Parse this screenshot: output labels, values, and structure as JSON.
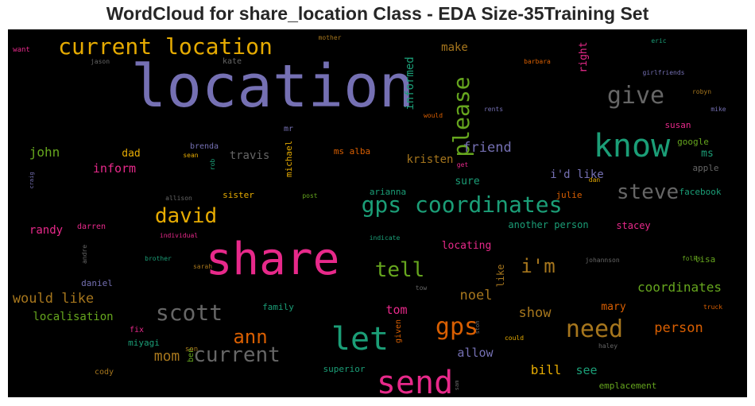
{
  "chart_data": {
    "type": "wordcloud",
    "title": "WordCloud for share_location Class - EDA Size-35Training Set",
    "background_color": "#000000",
    "colormap": "Dark2",
    "words": [
      {
        "text": "location",
        "weight": 100,
        "color": "#7570b3"
      },
      {
        "text": "share",
        "weight": 75,
        "color": "#e7298a"
      },
      {
        "text": "know",
        "weight": 48,
        "color": "#1b9e77"
      },
      {
        "text": "send",
        "weight": 46,
        "color": "#e7298a"
      },
      {
        "text": "let",
        "weight": 44,
        "color": "#1b9e77"
      },
      {
        "text": "need",
        "weight": 38,
        "color": "#a6761d"
      },
      {
        "text": "gps",
        "weight": 36,
        "color": "#d95f02"
      },
      {
        "text": "current location",
        "weight": 35,
        "color": "#e6ab02"
      },
      {
        "text": "gps coordinates",
        "weight": 33,
        "color": "#1b9e77"
      },
      {
        "text": "scott",
        "weight": 34,
        "color": "#666666"
      },
      {
        "text": "give",
        "weight": 32,
        "color": "#666666"
      },
      {
        "text": "please",
        "weight": 30,
        "color": "#66a61e"
      },
      {
        "text": "david",
        "weight": 30,
        "color": "#e6ab02"
      },
      {
        "text": "steve",
        "weight": 30,
        "color": "#666666"
      },
      {
        "text": "tell",
        "weight": 29,
        "color": "#66a61e"
      },
      {
        "text": "current",
        "weight": 28,
        "color": "#666666"
      },
      {
        "text": "ann",
        "weight": 28,
        "color": "#d95f02"
      },
      {
        "text": "i'm",
        "weight": 26,
        "color": "#a6761d"
      },
      {
        "text": "friend",
        "weight": 18,
        "color": "#7570b3"
      },
      {
        "text": "mom",
        "weight": 19,
        "color": "#a6761d"
      },
      {
        "text": "would like",
        "weight": 18,
        "color": "#a6761d"
      },
      {
        "text": "coordinates",
        "weight": 18,
        "color": "#66a61e"
      },
      {
        "text": "show",
        "weight": 18,
        "color": "#a6761d"
      },
      {
        "text": "noel",
        "weight": 18,
        "color": "#a6761d"
      },
      {
        "text": "person",
        "weight": 17,
        "color": "#d95f02"
      },
      {
        "text": "bill",
        "weight": 17,
        "color": "#e6ab02"
      },
      {
        "text": "john",
        "weight": 17,
        "color": "#66a61e"
      },
      {
        "text": "tom",
        "weight": 16,
        "color": "#e7298a"
      },
      {
        "text": "allow",
        "weight": 15,
        "color": "#7570b3"
      },
      {
        "text": "see",
        "weight": 15,
        "color": "#1b9e77"
      },
      {
        "text": "inform",
        "weight": 15,
        "color": "#e7298a"
      },
      {
        "text": "travis",
        "weight": 14,
        "color": "#666666"
      },
      {
        "text": "kristen",
        "weight": 14,
        "color": "#a6761d"
      },
      {
        "text": "make",
        "weight": 14,
        "color": "#a6761d"
      },
      {
        "text": "informed",
        "weight": 14,
        "color": "#1b9e77"
      },
      {
        "text": "right",
        "weight": 13,
        "color": "#e7298a"
      },
      {
        "text": "i'd like",
        "weight": 14,
        "color": "#7570b3"
      },
      {
        "text": "localisation",
        "weight": 14,
        "color": "#66a61e"
      },
      {
        "text": "randy",
        "weight": 14,
        "color": "#e7298a"
      },
      {
        "text": "locating",
        "weight": 13,
        "color": "#e7298a"
      },
      {
        "text": "dad",
        "weight": 13,
        "color": "#e6ab02"
      },
      {
        "text": "mary",
        "weight": 13,
        "color": "#d95f02"
      },
      {
        "text": "sure",
        "weight": 13,
        "color": "#1b9e77"
      },
      {
        "text": "ms",
        "weight": 13,
        "color": "#1b9e77"
      },
      {
        "text": "another person",
        "weight": 12,
        "color": "#1b9e77"
      },
      {
        "text": "stacey",
        "weight": 12,
        "color": "#e7298a"
      },
      {
        "text": "like",
        "weight": 12,
        "color": "#a6761d"
      },
      {
        "text": "sister",
        "weight": 11,
        "color": "#e6ab02"
      },
      {
        "text": "michael",
        "weight": 11,
        "color": "#e6ab02"
      },
      {
        "text": "ms alba",
        "weight": 11,
        "color": "#d95f02"
      },
      {
        "text": "arianna",
        "weight": 11,
        "color": "#1b9e77"
      },
      {
        "text": "julie",
        "weight": 11,
        "color": "#d95f02"
      },
      {
        "text": "facebook",
        "weight": 11,
        "color": "#1b9e77"
      },
      {
        "text": "google",
        "weight": 11,
        "color": "#66a61e"
      },
      {
        "text": "apple",
        "weight": 11,
        "color": "#666666"
      },
      {
        "text": "susan",
        "weight": 11,
        "color": "#e7298a"
      },
      {
        "text": "emplacement",
        "weight": 11,
        "color": "#66a61e"
      },
      {
        "text": "superior",
        "weight": 11,
        "color": "#1b9e77"
      },
      {
        "text": "family",
        "weight": 11,
        "color": "#1b9e77"
      },
      {
        "text": "miyagi",
        "weight": 11,
        "color": "#1b9e77"
      },
      {
        "text": "daniel",
        "weight": 11,
        "color": "#7570b3"
      },
      {
        "text": "lisa",
        "weight": 11,
        "color": "#66a61e"
      },
      {
        "text": "darren",
        "weight": 10,
        "color": "#e7298a"
      },
      {
        "text": "brenda",
        "weight": 10,
        "color": "#7570b3"
      },
      {
        "text": "kate",
        "weight": 10,
        "color": "#666666"
      },
      {
        "text": "cody",
        "weight": 10,
        "color": "#a6761d"
      },
      {
        "text": "mr",
        "weight": 10,
        "color": "#7570b3"
      },
      {
        "text": "given",
        "weight": 10,
        "color": "#d95f02"
      },
      {
        "text": "fix",
        "weight": 10,
        "color": "#e7298a"
      },
      {
        "text": "ben",
        "weight": 10,
        "color": "#66a61e"
      },
      {
        "text": "son",
        "weight": 9,
        "color": "#a6761d"
      },
      {
        "text": "want",
        "weight": 9,
        "color": "#e7298a"
      },
      {
        "text": "mother",
        "weight": 8,
        "color": "#a6761d"
      },
      {
        "text": "jason",
        "weight": 8,
        "color": "#666666"
      },
      {
        "text": "barbara",
        "weight": 8,
        "color": "#d95f02"
      },
      {
        "text": "eric",
        "weight": 8,
        "color": "#1b9e77"
      },
      {
        "text": "girlfriends",
        "weight": 8,
        "color": "#7570b3"
      },
      {
        "text": "robyn",
        "weight": 8,
        "color": "#a6761d"
      },
      {
        "text": "mike",
        "weight": 8,
        "color": "#7570b3"
      },
      {
        "text": "rents",
        "weight": 8,
        "color": "#7570b3"
      },
      {
        "text": "would",
        "weight": 8,
        "color": "#d95f02"
      },
      {
        "text": "sean",
        "weight": 8,
        "color": "#e6ab02"
      },
      {
        "text": "rob",
        "weight": 8,
        "color": "#1b9e77"
      },
      {
        "text": "get",
        "weight": 8,
        "color": "#e7298a"
      },
      {
        "text": "dan",
        "weight": 8,
        "color": "#e6ab02"
      },
      {
        "text": "craig",
        "weight": 7,
        "color": "#7570b3"
      },
      {
        "text": "allison",
        "weight": 8,
        "color": "#666666"
      },
      {
        "text": "post",
        "weight": 8,
        "color": "#66a61e"
      },
      {
        "text": "individual",
        "weight": 8,
        "color": "#e7298a"
      },
      {
        "text": "indicate",
        "weight": 8,
        "color": "#1b9e77"
      },
      {
        "text": "andre",
        "weight": 8,
        "color": "#666666"
      },
      {
        "text": "brother",
        "weight": 8,
        "color": "#1b9e77"
      },
      {
        "text": "sarah",
        "weight": 8,
        "color": "#a6761d"
      },
      {
        "text": "johannson",
        "weight": 8,
        "color": "#666666"
      },
      {
        "text": "folks",
        "weight": 8,
        "color": "#66a61e"
      },
      {
        "text": "tow",
        "weight": 8,
        "color": "#666666"
      },
      {
        "text": "truck",
        "weight": 8,
        "color": "#d95f02"
      },
      {
        "text": "could",
        "weight": 8,
        "color": "#e6ab02"
      },
      {
        "text": "haley",
        "weight": 8,
        "color": "#666666"
      },
      {
        "text": "stoh",
        "weight": 7,
        "color": "#666666"
      },
      {
        "text": "sam",
        "weight": 7,
        "color": "#666666"
      }
    ]
  }
}
